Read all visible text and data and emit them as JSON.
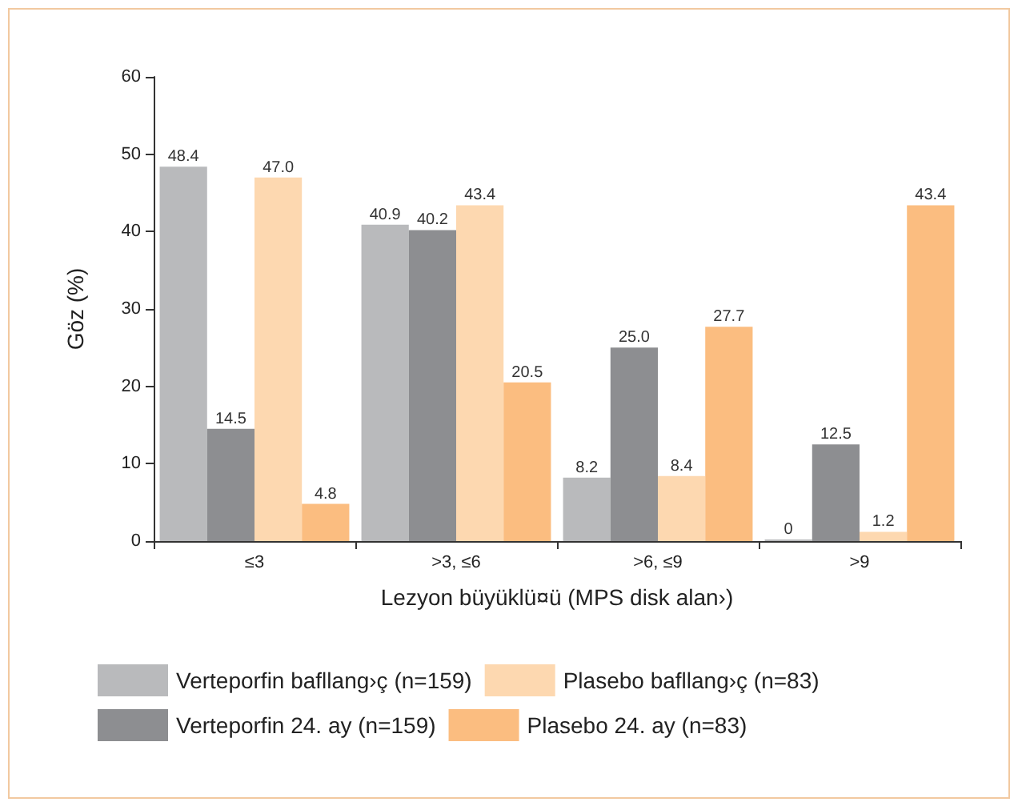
{
  "chart_data": {
    "type": "bar",
    "xlabel": "Lezyon büyüklü¤ü (MPS disk alan›)",
    "ylabel": "Göz (%)",
    "categories": [
      "≤3",
      ">3, ≤6",
      ">6, ≤9",
      ">9"
    ],
    "series": [
      {
        "name": "Verteporfin bafllang›ç (n=159)",
        "color": "#b9babc",
        "values": [
          48.4,
          40.9,
          8.2,
          0
        ],
        "value_labels": [
          "48.4",
          "40.9",
          "8.2",
          "0"
        ]
      },
      {
        "name": "Verteporfin 24. ay (n=159)",
        "color": "#8d8e91",
        "values": [
          14.5,
          40.2,
          25.0,
          12.5
        ],
        "value_labels": [
          "14.5",
          "40.2",
          "25.0",
          "12.5"
        ]
      },
      {
        "name": "Plasebo bafllang›ç (n=83)",
        "color": "#fdd8b0",
        "values": [
          47.0,
          43.4,
          8.4,
          1.2
        ],
        "value_labels": [
          "47.0",
          "43.4",
          "8.4",
          "1.2"
        ]
      },
      {
        "name": "Plasebo 24. ay (n=83)",
        "color": "#fbbd80",
        "values": [
          4.8,
          20.5,
          27.7,
          43.4
        ],
        "value_labels": [
          "4.8",
          "20.5",
          "27.7",
          "43.4"
        ]
      }
    ],
    "ylim": [
      0,
      60
    ],
    "yticks": [
      0,
      10,
      20,
      30,
      40,
      50,
      60
    ],
    "grid": false,
    "legend": "bottom"
  }
}
